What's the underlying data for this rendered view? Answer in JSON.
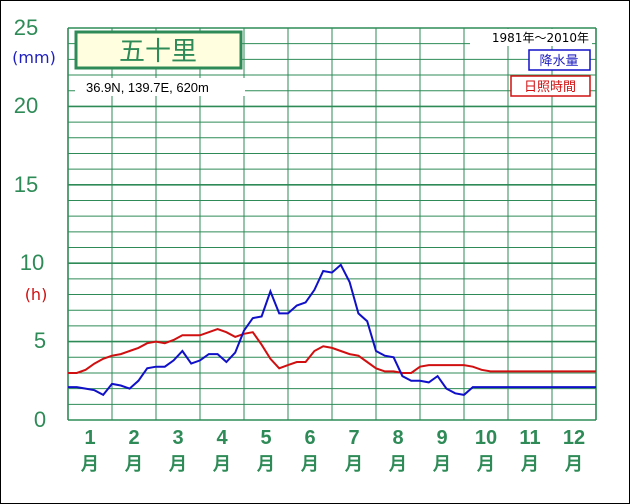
{
  "title": {
    "station": "五十里",
    "coords": "36.9N,  139.7E,  620m",
    "period": "1981年〜2010年"
  },
  "colors": {
    "grid": "#2e8b57",
    "precip": "#1010c8",
    "sun": "#d01010",
    "station_box_fill": "#ffffe0"
  },
  "chart_data": {
    "type": "line",
    "x_unit": "month",
    "x": [
      0.0,
      0.2,
      0.4,
      0.6,
      0.8,
      1.0,
      1.2,
      1.4,
      1.6,
      1.8,
      2.0,
      2.2,
      2.4,
      2.6,
      2.8,
      3.0,
      3.2,
      3.4,
      3.6,
      3.8,
      4.0,
      4.2,
      4.4,
      4.6,
      4.8,
      5.0,
      5.2,
      5.4,
      5.6,
      5.8,
      6.0,
      6.2,
      6.4,
      6.6,
      6.8,
      7.0,
      7.2,
      7.4,
      7.6,
      7.8,
      8.0,
      8.2,
      8.4,
      8.6,
      8.8,
      9.0,
      9.2,
      9.4,
      9.6,
      9.8,
      10.0,
      10.2,
      10.4,
      10.6,
      10.8,
      11.0,
      11.2,
      11.4,
      11.6,
      11.8,
      12.0
    ],
    "ylim": [
      0,
      25
    ],
    "yticks": [
      "25",
      "20",
      "15",
      "10",
      "5",
      "0"
    ],
    "ylabel_precip": "(mm)",
    "ylabel_sun": "(h)",
    "xlabels": [
      {
        "num": "1",
        "suffix": "月"
      },
      {
        "num": "2",
        "suffix": "月"
      },
      {
        "num": "3",
        "suffix": "月"
      },
      {
        "num": "4",
        "suffix": "月"
      },
      {
        "num": "5",
        "suffix": "月"
      },
      {
        "num": "6",
        "suffix": "月"
      },
      {
        "num": "7",
        "suffix": "月"
      },
      {
        "num": "8",
        "suffix": "月"
      },
      {
        "num": "9",
        "suffix": "月"
      },
      {
        "num": "10",
        "suffix": "月"
      },
      {
        "num": "11",
        "suffix": "月"
      },
      {
        "num": "12",
        "suffix": "月"
      }
    ],
    "series": [
      {
        "name": "降水量",
        "values": [
          2.1,
          2.1,
          2.0,
          1.9,
          1.6,
          2.3,
          2.2,
          2.0,
          2.5,
          3.3,
          3.4,
          3.4,
          3.8,
          4.4,
          3.6,
          3.8,
          4.2,
          4.2,
          3.7,
          4.3,
          5.7,
          6.5,
          6.6,
          8.2,
          6.8,
          6.8,
          7.3,
          7.5,
          8.3,
          9.5,
          9.4,
          9.9,
          8.8,
          6.8,
          6.3,
          4.4,
          4.1,
          4.0,
          2.8,
          2.5,
          2.5,
          2.4,
          2.8,
          2.0,
          1.7,
          1.6,
          2.1,
          2.1,
          2.1,
          2.1,
          2.1,
          2.1,
          2.1,
          2.1,
          2.1,
          2.1,
          2.1,
          2.1,
          2.1,
          2.1,
          2.1
        ]
      },
      {
        "name": "日照時間",
        "values": [
          3.0,
          3.0,
          3.2,
          3.6,
          3.9,
          4.1,
          4.2,
          4.4,
          4.6,
          4.9,
          5.0,
          4.9,
          5.1,
          5.4,
          5.4,
          5.4,
          5.6,
          5.8,
          5.6,
          5.3,
          5.5,
          5.6,
          4.8,
          3.9,
          3.3,
          3.5,
          3.7,
          3.7,
          4.4,
          4.7,
          4.6,
          4.4,
          4.2,
          4.1,
          3.7,
          3.3,
          3.1,
          3.1,
          3.0,
          3.0,
          3.4,
          3.5,
          3.5,
          3.5,
          3.5,
          3.5,
          3.4,
          3.2,
          3.1,
          3.1,
          3.1,
          3.1,
          3.1,
          3.1,
          3.1,
          3.1,
          3.1,
          3.1,
          3.1,
          3.1,
          3.1
        ]
      }
    ]
  }
}
